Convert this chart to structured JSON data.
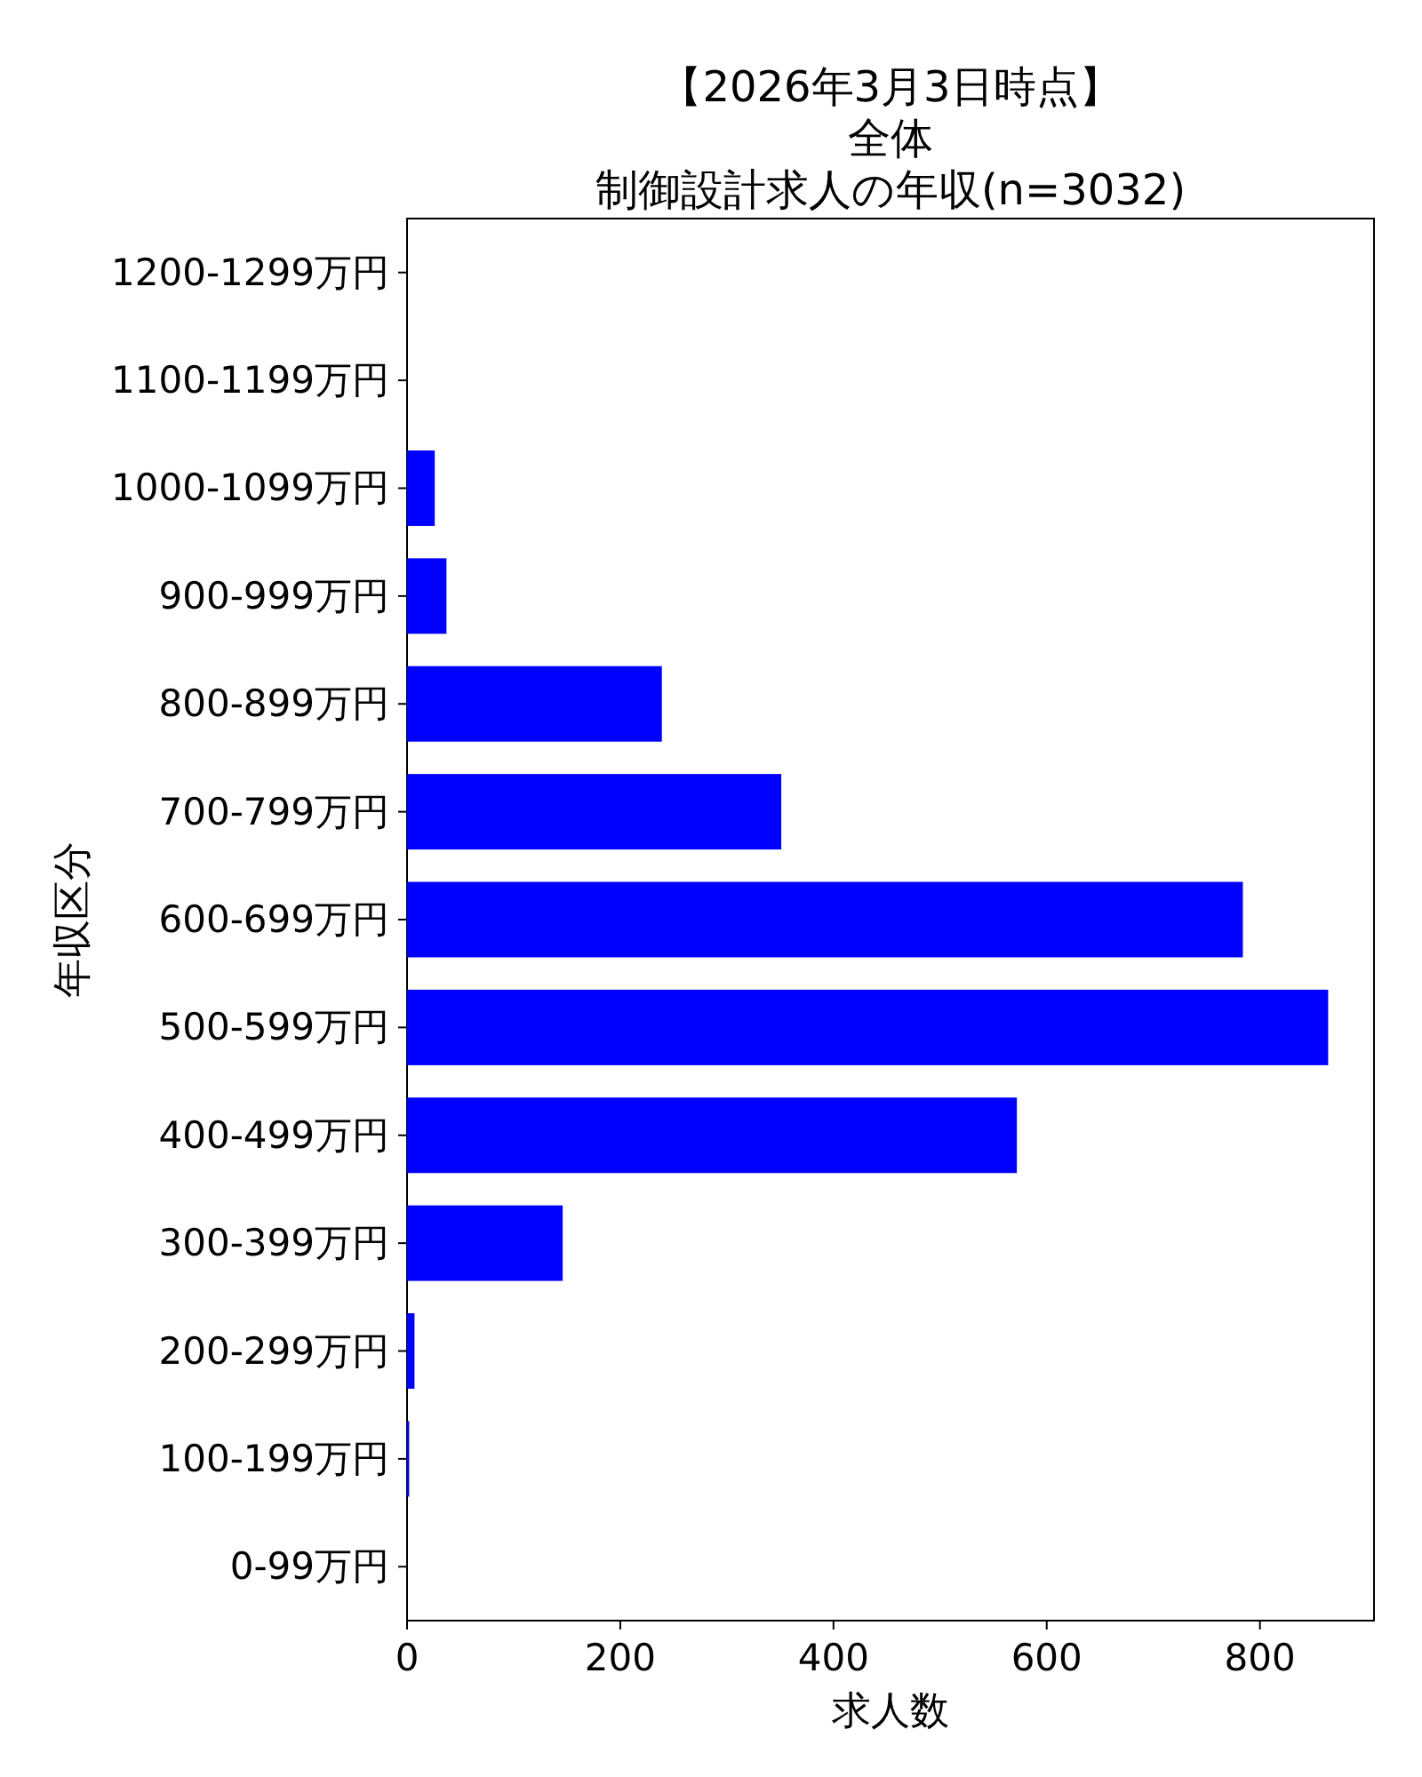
{
  "chart_data": {
    "type": "bar",
    "orientation": "horizontal",
    "title": "制御設計求人の年収(n=3032)",
    "subtitle": "全体",
    "annotations": [
      "【2026年3月3日時点】"
    ],
    "xlabel": "求人数",
    "ylabel": "年収区分",
    "categories": [
      "1200-1299万円",
      "1100-1199万円",
      "1000-1099万円",
      "900-999万円",
      "800-899万円",
      "700-799万円",
      "600-699万円",
      "500-599万円",
      "400-499万円",
      "300-399万円",
      "200-299万円",
      "100-199万円",
      "0-99万円"
    ],
    "values": [
      0,
      0,
      26,
      37,
      239,
      351,
      784,
      864,
      572,
      146,
      7,
      2,
      0
    ],
    "color": "#0000ff",
    "xlim": [
      0,
      907
    ],
    "xticks": [
      0,
      200,
      400,
      600,
      800
    ],
    "grid": false
  }
}
